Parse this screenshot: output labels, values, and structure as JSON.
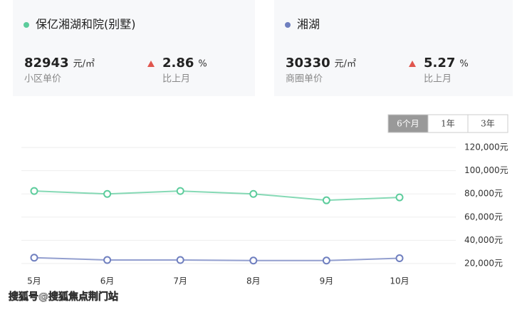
{
  "cards": [
    {
      "price": "82943",
      "unit": "元/㎡",
      "price_label": "小区单价",
      "change": "2.86",
      "change_unit": "%",
      "change_label": "比上月"
    },
    {
      "price": "30330",
      "unit": "元/㎡",
      "price_label": "商圈单价",
      "change": "5.27",
      "change_unit": "%",
      "change_label": "比上月"
    }
  ],
  "tabs": {
    "items": [
      "6个月",
      "1年",
      "3年"
    ],
    "active": 0
  },
  "watermark": "搜狐号@搜狐焦点荆门站",
  "chart_data": {
    "type": "line",
    "categories": [
      "5月",
      "6月",
      "7月",
      "8月",
      "9月",
      "10月"
    ],
    "series": [
      {
        "name": "保亿湘湖和院(别墅)",
        "color": "#5ccc9c",
        "values": [
          82500,
          80000,
          82500,
          80000,
          74500,
          77000
        ]
      },
      {
        "name": "湘湖",
        "color": "#6f7fbf",
        "values": [
          25000,
          23000,
          23000,
          22500,
          22500,
          24500
        ]
      }
    ],
    "ylim": [
      15000,
      125000
    ],
    "yticks": [
      {
        "value": 20000,
        "label": "20,000元"
      },
      {
        "value": 40000,
        "label": "40,000元"
      },
      {
        "value": 60000,
        "label": "60,000元"
      },
      {
        "value": 80000,
        "label": "80,000元"
      },
      {
        "value": 100000,
        "label": "100,000元"
      },
      {
        "value": 120000,
        "label": "120,000元"
      }
    ],
    "grid": true
  }
}
